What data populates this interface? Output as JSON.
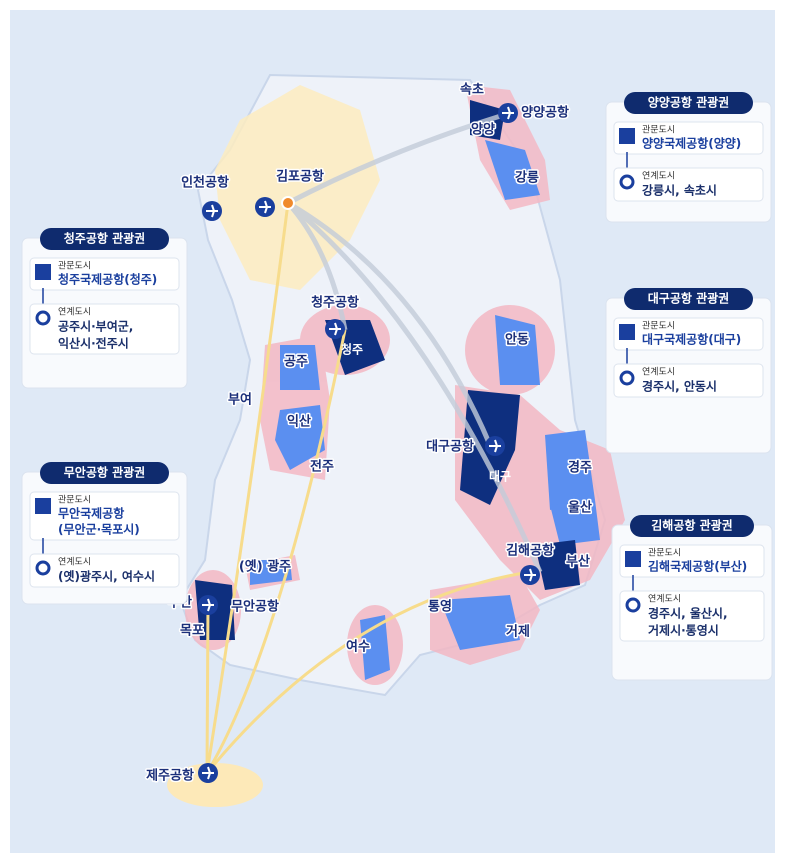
{
  "map_labels": [
    "속초",
    "양양공항",
    "양양",
    "강릉",
    "인천공항",
    "김포공항",
    "청주공항",
    "청주",
    "공주",
    "부여",
    "익산",
    "전주",
    "안동",
    "대구공항",
    "대구",
    "경주",
    "울산",
    "김해공항",
    "부산",
    "통영",
    "거제",
    "(옛) 광주",
    "무안",
    "무안공항",
    "목포",
    "여수",
    "제주공항"
  ],
  "panels": [
    {
      "title": "양양공항 관광권",
      "gateway_label": "관문도시",
      "gateway": [
        "양양국제공항(양양)"
      ],
      "linked_label": "연계도시",
      "linked": [
        "강릉시, 속초시"
      ]
    },
    {
      "title": "청주공항 관광권",
      "gateway_label": "관문도시",
      "gateway": [
        "청주국제공항(청주)"
      ],
      "linked_label": "연계도시",
      "linked": [
        "공주시·부여군,",
        "익산시·전주시"
      ]
    },
    {
      "title": "대구공항 관광권",
      "gateway_label": "관문도시",
      "gateway": [
        "대구국제공항(대구)"
      ],
      "linked_label": "연계도시",
      "linked": [
        "경주시, 안동시"
      ]
    },
    {
      "title": "무안공항 관광권",
      "gateway_label": "관문도시",
      "gateway": [
        "무안국제공항",
        "(무안군·목포시)"
      ],
      "linked_label": "연계도시",
      "linked": [
        "(옛)광주시, 여수시"
      ]
    },
    {
      "title": "김해공항 관광권",
      "gateway_label": "관문도시",
      "gateway": [
        "김해국제공항(부산)"
      ],
      "linked_label": "연계도시",
      "linked": [
        "경주시, 울산시,",
        "거제시·통영시"
      ]
    }
  ]
}
